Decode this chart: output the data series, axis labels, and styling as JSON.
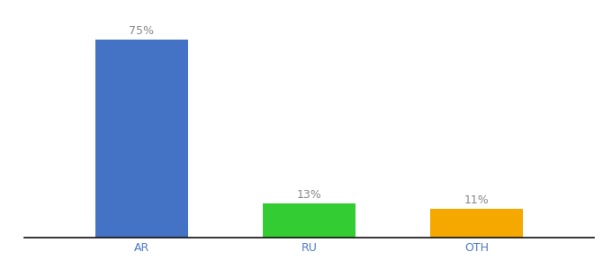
{
  "categories": [
    "AR",
    "RU",
    "OTH"
  ],
  "values": [
    75,
    13,
    11
  ],
  "bar_colors": [
    "#4472c4",
    "#33cc33",
    "#f5a800"
  ],
  "label_texts": [
    "75%",
    "13%",
    "11%"
  ],
  "background_color": "#ffffff",
  "label_color": "#888888",
  "label_fontsize": 9,
  "tick_fontsize": 9,
  "tick_color": "#4d7cc7",
  "ylim": [
    0,
    83
  ],
  "bar_width": 0.55,
  "x_positions": [
    1,
    2,
    3
  ],
  "xlim": [
    0.3,
    3.7
  ]
}
